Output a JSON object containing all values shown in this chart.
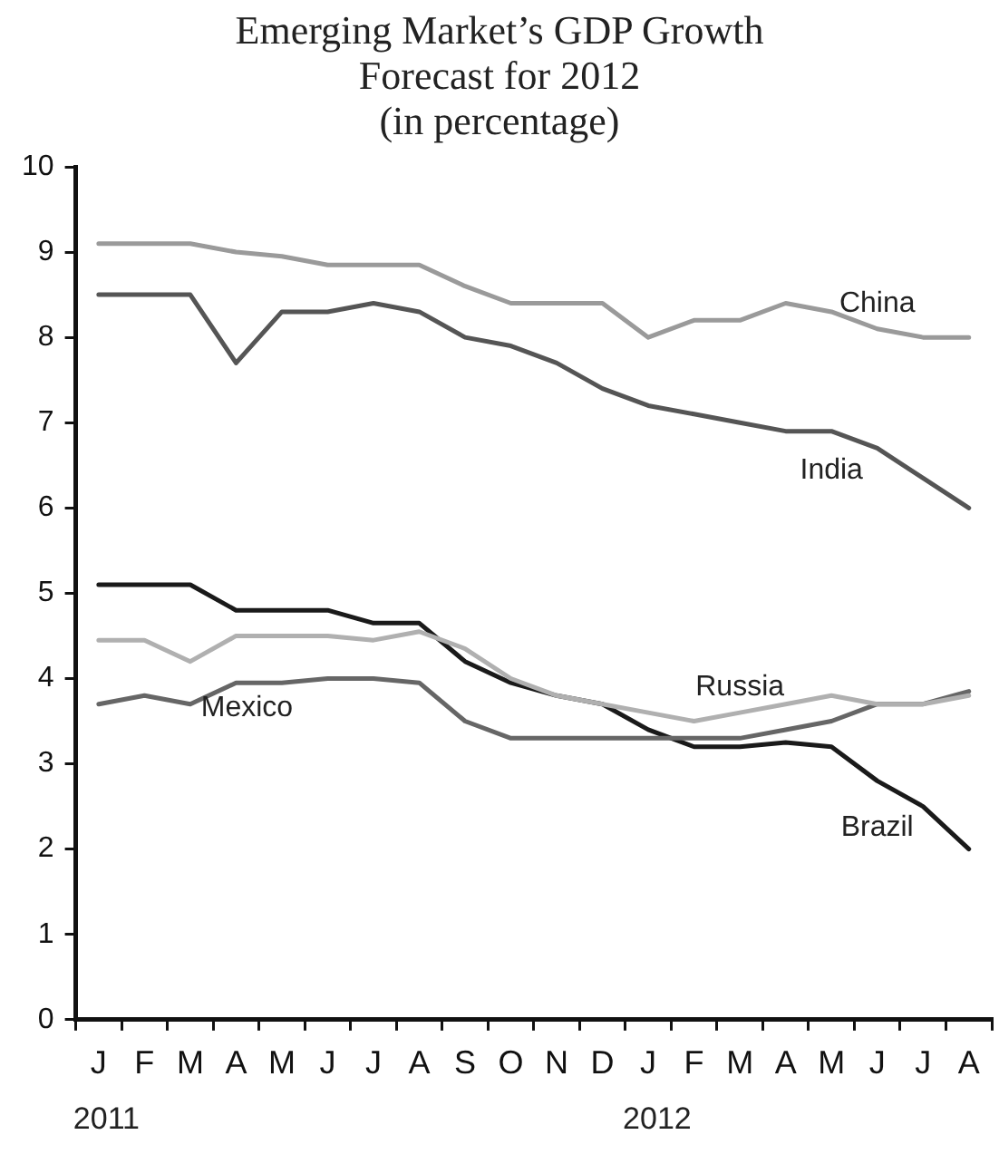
{
  "chart_data": {
    "type": "line",
    "title": "Emerging Market’s GDP Growth Forecast for 2012",
    "subtitle": "(in percentage)",
    "categories": [
      "J",
      "F",
      "M",
      "A",
      "M",
      "J",
      "J",
      "A",
      "S",
      "O",
      "N",
      "D",
      "J",
      "F",
      "M",
      "A",
      "M",
      "J",
      "J",
      "A"
    ],
    "series": [
      {
        "name": "China",
        "color": "#9a9a9a",
        "values": [
          9.1,
          9.1,
          9.1,
          9.0,
          8.95,
          8.85,
          8.85,
          8.85,
          8.6,
          8.4,
          8.4,
          8.4,
          8.0,
          8.2,
          8.2,
          8.4,
          8.3,
          8.1,
          8.0,
          8.0
        ]
      },
      {
        "name": "India",
        "color": "#555555",
        "values": [
          8.5,
          8.5,
          8.5,
          7.7,
          8.3,
          8.3,
          8.4,
          8.3,
          8.0,
          7.9,
          7.7,
          7.4,
          7.2,
          7.1,
          7.0,
          6.9,
          6.9,
          6.7,
          6.35,
          6.0
        ]
      },
      {
        "name": "Russia",
        "color": "#b0b0b0",
        "values": [
          4.45,
          4.45,
          4.2,
          4.5,
          4.5,
          4.5,
          4.45,
          4.55,
          4.35,
          4.0,
          3.8,
          3.7,
          3.6,
          3.5,
          3.6,
          3.7,
          3.8,
          3.7,
          3.7,
          3.8
        ]
      },
      {
        "name": "Mexico",
        "color": "#666666",
        "values": [
          3.7,
          3.8,
          3.7,
          3.95,
          3.95,
          4.0,
          4.0,
          3.95,
          3.5,
          3.3,
          3.3,
          3.3,
          3.3,
          3.3,
          3.3,
          3.4,
          3.5,
          3.7,
          3.7,
          3.85
        ]
      },
      {
        "name": "Brazil",
        "color": "#1a1a1a",
        "values": [
          5.1,
          5.1,
          5.1,
          4.8,
          4.8,
          4.8,
          4.65,
          4.65,
          4.2,
          3.95,
          3.8,
          3.7,
          3.4,
          3.2,
          3.2,
          3.25,
          3.2,
          2.8,
          2.5,
          2.0
        ]
      }
    ],
    "annotations": [
      "2011",
      "2012"
    ],
    "ylim": [
      0,
      10
    ],
    "yticks": [
      0,
      1,
      2,
      3,
      4,
      5,
      6,
      7,
      8,
      9,
      10
    ],
    "grid": false,
    "legend": false,
    "marker": "none",
    "line_style": "solid"
  }
}
